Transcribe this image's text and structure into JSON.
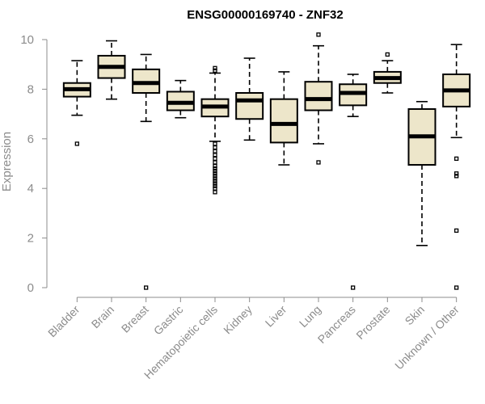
{
  "chart_data": {
    "type": "box",
    "title": "ENSG00000169740 - ZNF32",
    "ylabel": "Expression",
    "xlabel": "",
    "ylim": [
      0,
      10
    ],
    "yticks": [
      0,
      2,
      4,
      6,
      8,
      10
    ],
    "box_fill": "#ede6ca",
    "grid": false,
    "categories": [
      "Bladder",
      "Brain",
      "Breast",
      "Gastric",
      "Hematopoietic cells",
      "Kidney",
      "Liver",
      "Lung",
      "Pancreas",
      "Prostate",
      "Skin",
      "Unknown / Other"
    ],
    "boxes": [
      {
        "category": "Bladder",
        "whisker_low": 6.95,
        "q1": 7.7,
        "median": 8.0,
        "q3": 8.25,
        "whisker_high": 9.15,
        "outliers": [
          5.8
        ]
      },
      {
        "category": "Brain",
        "whisker_low": 7.6,
        "q1": 8.45,
        "median": 8.9,
        "q3": 9.35,
        "whisker_high": 9.95,
        "outliers": []
      },
      {
        "category": "Breast",
        "whisker_low": 6.7,
        "q1": 7.85,
        "median": 8.25,
        "q3": 8.8,
        "whisker_high": 9.4,
        "outliers": [
          0.0
        ]
      },
      {
        "category": "Gastric",
        "whisker_low": 6.85,
        "q1": 7.15,
        "median": 7.45,
        "q3": 7.9,
        "whisker_high": 8.35,
        "outliers": []
      },
      {
        "category": "Hematopoietic cells",
        "whisker_low": 5.9,
        "q1": 6.9,
        "median": 7.3,
        "q3": 7.6,
        "whisker_high": 8.65,
        "outliers": [
          8.75,
          8.85,
          5.8,
          5.65,
          5.5,
          5.35,
          5.2,
          5.05,
          4.9,
          4.8,
          4.7,
          4.6,
          4.5,
          4.4,
          4.3,
          4.2,
          4.1,
          4.0,
          3.85
        ]
      },
      {
        "category": "Kidney",
        "whisker_low": 5.95,
        "q1": 6.8,
        "median": 7.55,
        "q3": 7.85,
        "whisker_high": 9.25,
        "outliers": []
      },
      {
        "category": "Liver",
        "whisker_low": 4.95,
        "q1": 5.85,
        "median": 6.6,
        "q3": 7.6,
        "whisker_high": 8.7,
        "outliers": []
      },
      {
        "category": "Lung",
        "whisker_low": 5.8,
        "q1": 7.15,
        "median": 7.6,
        "q3": 8.3,
        "whisker_high": 9.75,
        "outliers": [
          10.2,
          5.05
        ]
      },
      {
        "category": "Pancreas",
        "whisker_low": 6.9,
        "q1": 7.35,
        "median": 7.85,
        "q3": 8.2,
        "whisker_high": 8.6,
        "outliers": [
          0.0
        ]
      },
      {
        "category": "Prostate",
        "whisker_low": 7.85,
        "q1": 8.25,
        "median": 8.45,
        "q3": 8.7,
        "whisker_high": 9.15,
        "outliers": [
          9.4
        ]
      },
      {
        "category": "Skin",
        "whisker_low": 1.7,
        "q1": 4.95,
        "median": 6.1,
        "q3": 7.2,
        "whisker_high": 7.5,
        "outliers": []
      },
      {
        "category": "Unknown / Other",
        "whisker_low": 6.05,
        "q1": 7.3,
        "median": 7.95,
        "q3": 8.6,
        "whisker_high": 9.8,
        "outliers": [
          5.2,
          4.6,
          4.5,
          2.3,
          0.0
        ]
      }
    ]
  }
}
